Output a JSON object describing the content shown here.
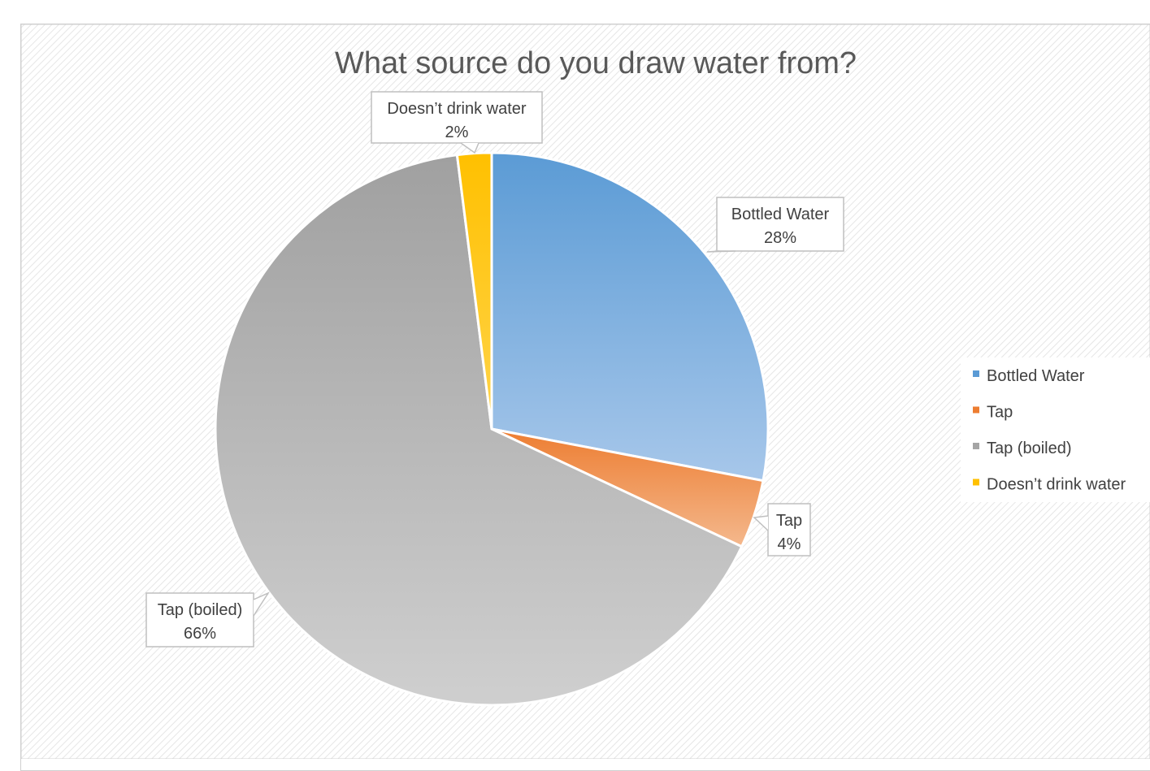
{
  "chart_data": {
    "type": "pie",
    "title": "What source do you draw water from?",
    "slices": [
      {
        "label": "Bottled Water",
        "value": 28,
        "percent_label": "28%",
        "color": "#5b9bd5"
      },
      {
        "label": "Tap",
        "value": 4,
        "percent_label": "4%",
        "color": "#ed7d31"
      },
      {
        "label": "Tap (boiled)",
        "value": 66,
        "percent_label": "66%",
        "color": "#a5a5a5"
      },
      {
        "label": "Doesn’t drink water",
        "value": 2,
        "percent_label": "2%",
        "color": "#ffc000"
      }
    ],
    "legend_position": "right",
    "data_labels": "callouts with category name and percentage"
  }
}
